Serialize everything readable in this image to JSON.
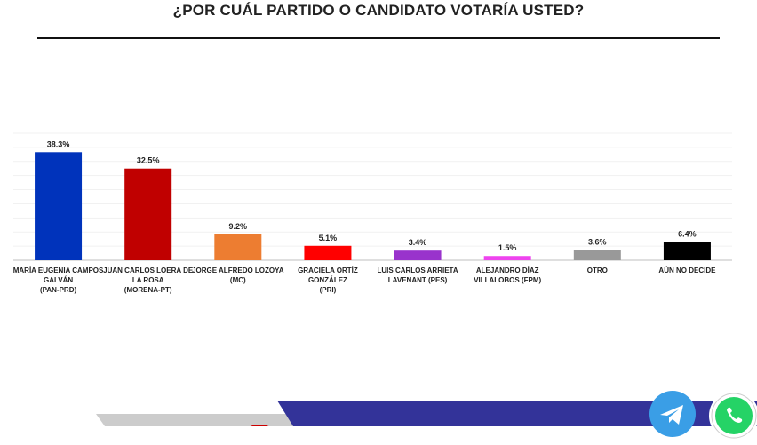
{
  "chart_data": {
    "type": "bar",
    "title": "¿POR CUÁL PARTIDO O CANDIDATO VOTARÍA USTED?",
    "ylim": [
      0,
      45
    ],
    "grid": true,
    "legend": "none",
    "categories": [
      [
        "MARÍA EUGENIA CAMPOS",
        "GALVÁN",
        "(PAN-PRD)"
      ],
      [
        "JUAN CARLOS LOERA DE",
        "LA ROSA",
        "(MORENA-PT)"
      ],
      [
        "JORGE ALFREDO LOZOYA",
        "(MC)"
      ],
      [
        "GRACIELA ORTÍZ",
        "GONZÁLEZ",
        "(PRI)"
      ],
      [
        "LUIS CARLOS ARRIETA",
        "LAVENANT (PES)"
      ],
      [
        "ALEJANDRO DÍAZ",
        "VILLALOBOS (FPM)"
      ],
      [
        "OTRO"
      ],
      [
        "AÚN NO DECIDE"
      ]
    ],
    "values": [
      38.3,
      32.5,
      9.2,
      5.1,
      3.4,
      1.5,
      3.6,
      6.4
    ],
    "value_labels": [
      "38.3%",
      "32.5%",
      "9.2%",
      "5.1%",
      "3.4%",
      "1.5%",
      "3.6%",
      "6.4%"
    ],
    "colors": [
      "#0033bb",
      "#c00000",
      "#ed7d31",
      "#ff0000",
      "#9933cc",
      "#ee44ee",
      "#999999",
      "#000000"
    ]
  },
  "footer": {
    "icons": [
      "telegram-icon",
      "whatsapp-icon"
    ],
    "band_colors": [
      "#cccccc",
      "#333399",
      "#cc0000"
    ]
  }
}
